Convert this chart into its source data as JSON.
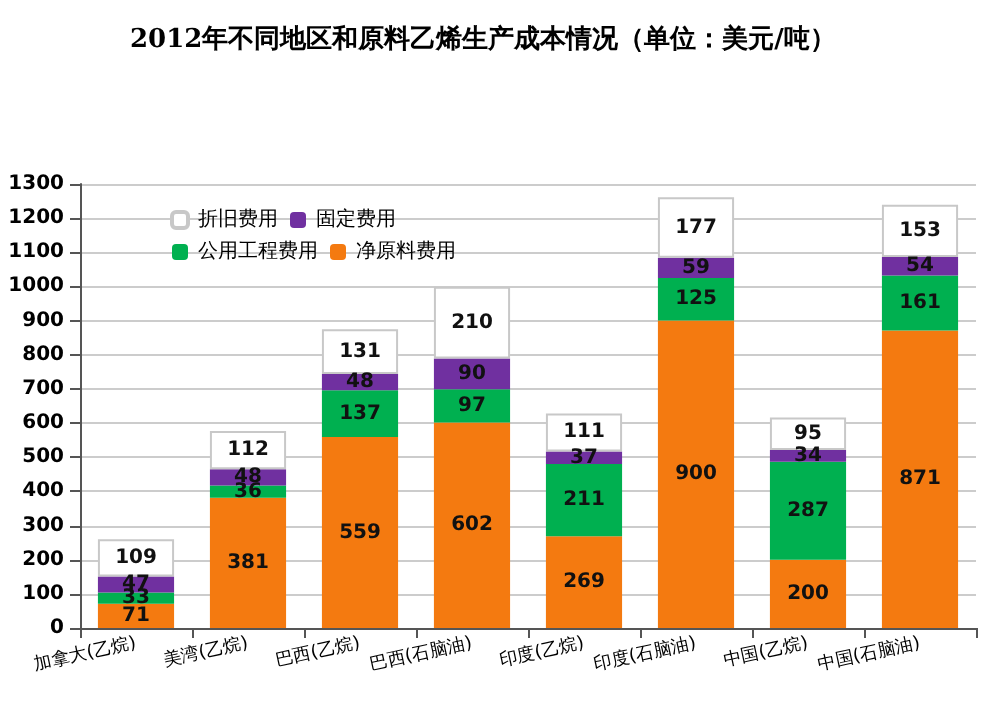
{
  "chart_data": {
    "type": "bar",
    "title": "2012年不同地区和原料乙烯生产成本情况（单位：美元/吨）",
    "categories": [
      "加拿大(乙烷)",
      "美湾(乙烷)",
      "巴西(乙烷)",
      "巴西(石脑油)",
      "印度(乙烷)",
      "印度(石脑油)",
      "中国(乙烷)",
      "中国(石脑油)"
    ],
    "series": [
      {
        "name": "净原料费用",
        "color": "#f47a10",
        "values": [
          71,
          381,
          559,
          602,
          269,
          900,
          200,
          871
        ]
      },
      {
        "name": "公用工程费用",
        "color": "#00b050",
        "values": [
          33,
          36,
          137,
          97,
          211,
          125,
          287,
          161
        ]
      },
      {
        "name": "固定费用",
        "color": "#7030a0",
        "values": [
          47,
          48,
          48,
          90,
          37,
          59,
          34,
          54
        ]
      },
      {
        "name": "折旧费用",
        "color": "#ffffff",
        "values": [
          109,
          112,
          131,
          210,
          111,
          177,
          95,
          153
        ]
      }
    ],
    "stacked": true,
    "ylim": [
      0,
      1300
    ],
    "yticks": [
      0,
      100,
      200,
      300,
      400,
      500,
      600,
      700,
      800,
      900,
      1000,
      1100,
      1200,
      1300
    ],
    "grid": "y",
    "legend": "top left",
    "data_labels": true
  }
}
